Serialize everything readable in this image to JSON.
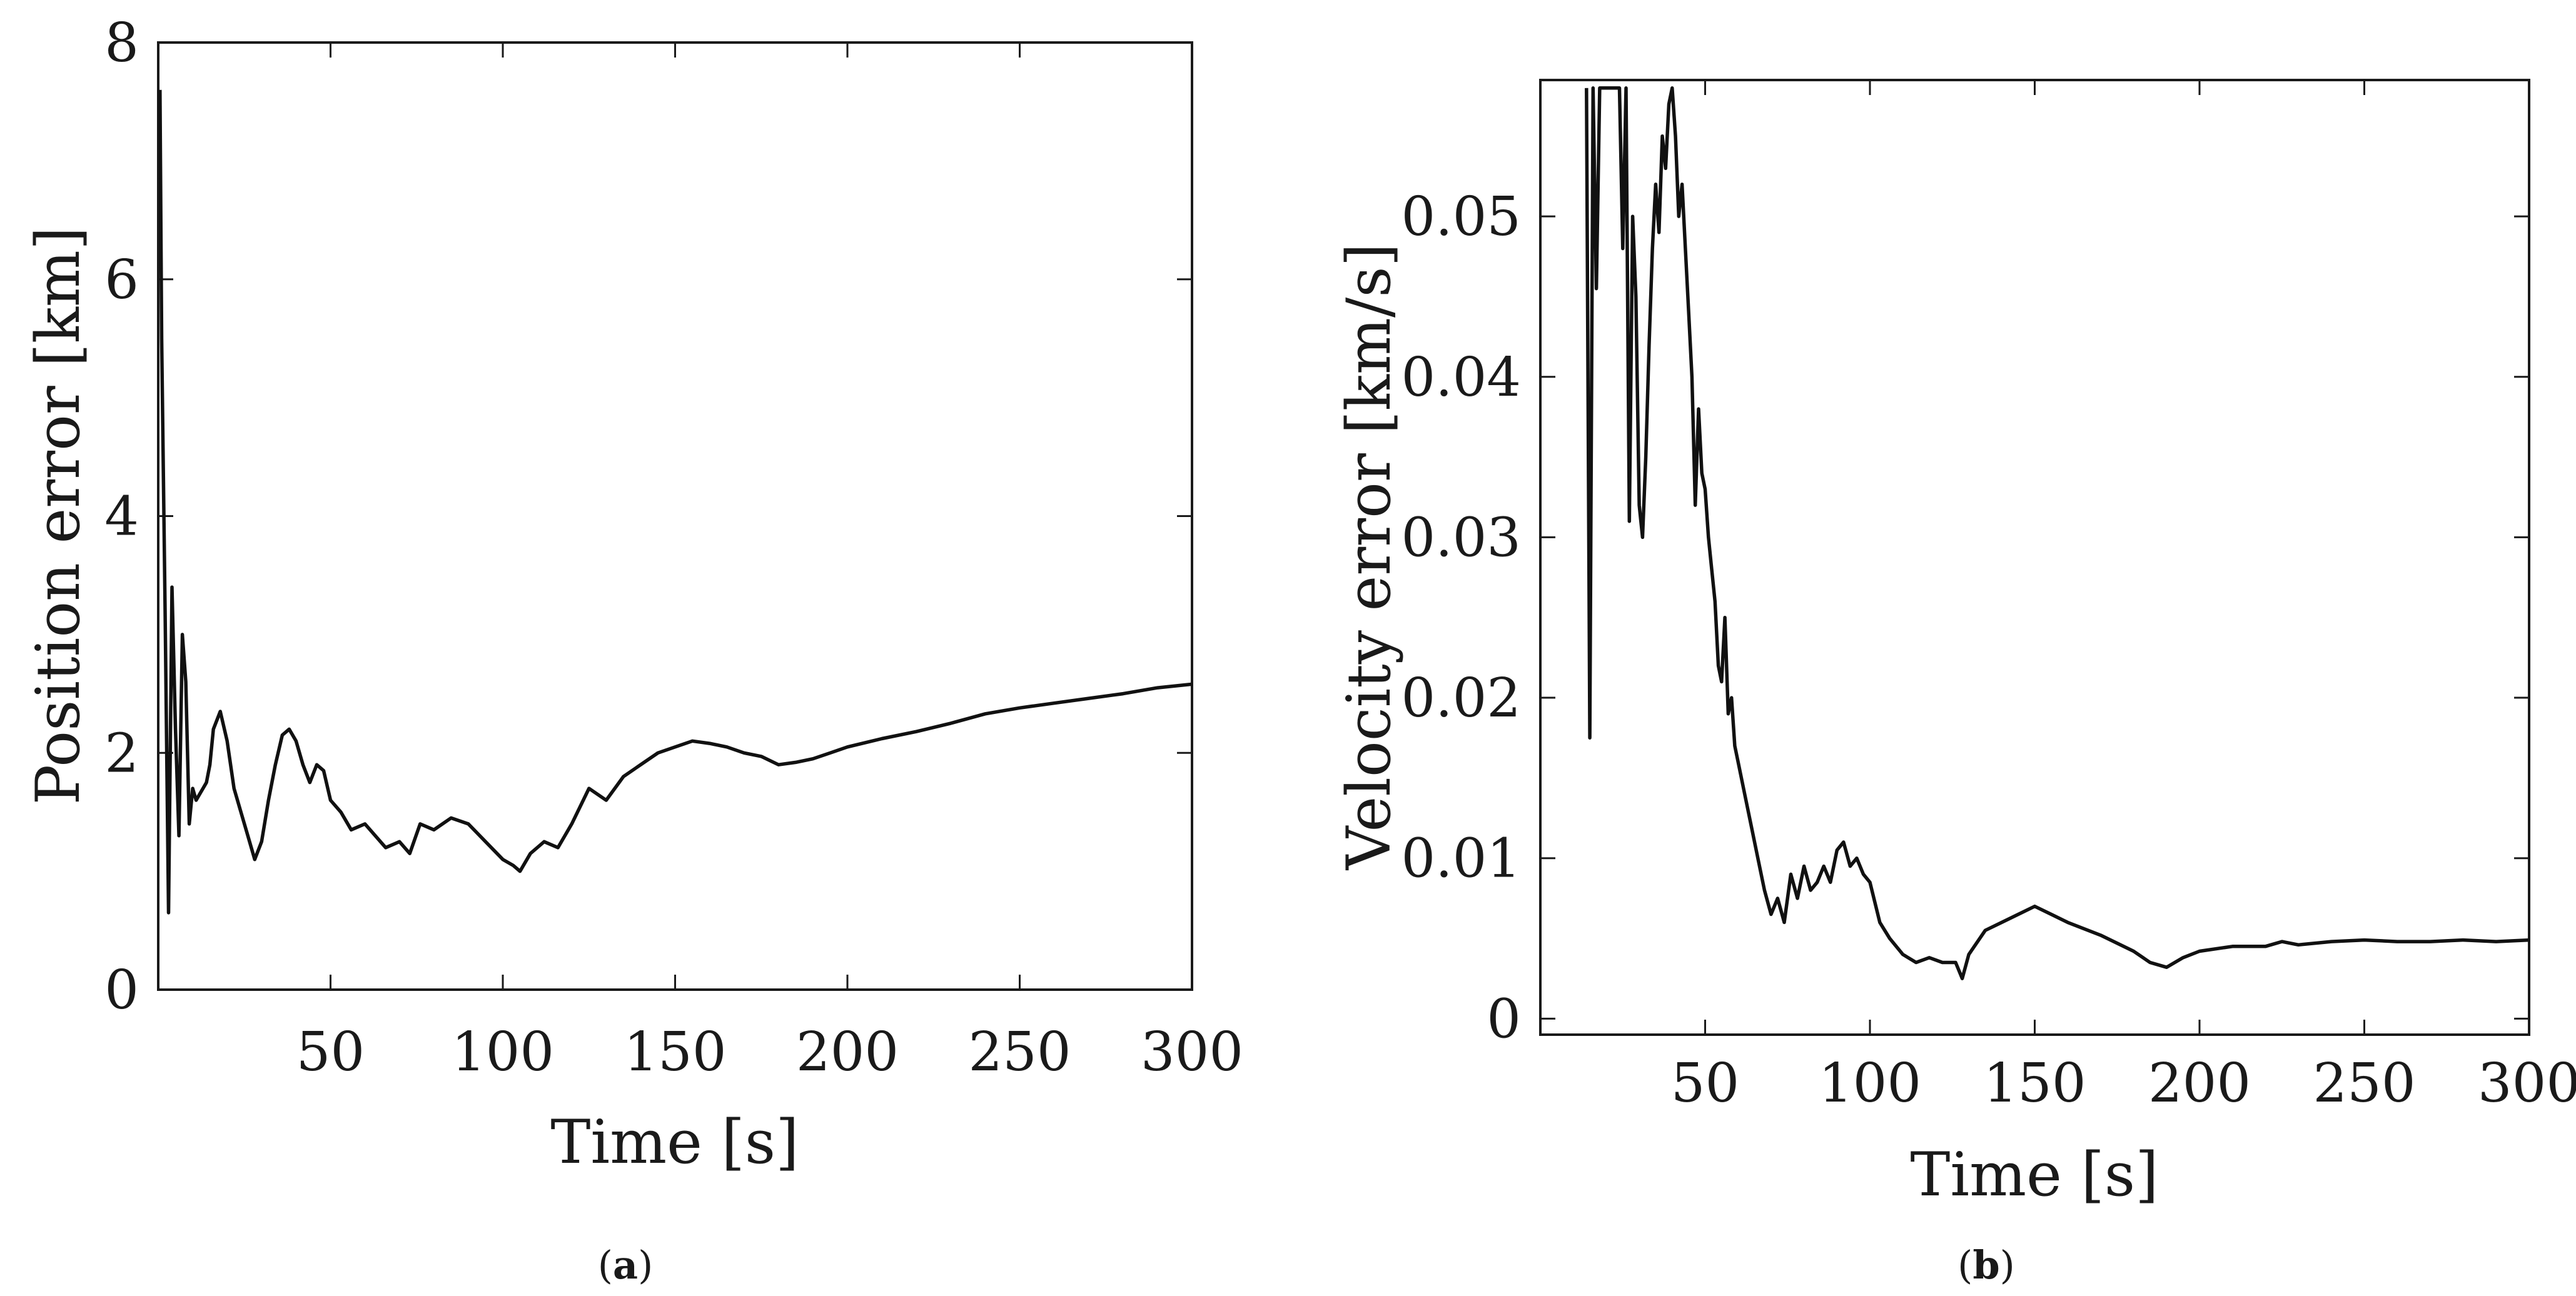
{
  "chart_data": [
    {
      "type": "line",
      "panel": "a",
      "caption": "a",
      "xlabel": "Time [s]",
      "ylabel": "Position error [km]",
      "xlim": [
        0,
        300
      ],
      "ylim": [
        0,
        8
      ],
      "xticks": [
        50,
        100,
        150,
        200,
        250,
        300
      ],
      "yticks": [
        0,
        2,
        4,
        6,
        8
      ],
      "series": [
        {
          "x": [
            0.5,
            1,
            2,
            3,
            4,
            5,
            6,
            7,
            8,
            9,
            10,
            11,
            12,
            13,
            14,
            15,
            16,
            18,
            20,
            22,
            24,
            26,
            28,
            30,
            32,
            34,
            36,
            38,
            40,
            42,
            44,
            46,
            48,
            50,
            53,
            56,
            60,
            63,
            66,
            70,
            73,
            76,
            80,
            85,
            90,
            95,
            100,
            103,
            105,
            108,
            112,
            116,
            120,
            125,
            130,
            135,
            140,
            145,
            150,
            155,
            160,
            165,
            170,
            175,
            180,
            185,
            190,
            195,
            200,
            210,
            220,
            230,
            240,
            250,
            260,
            270,
            280,
            290,
            300
          ],
          "values": [
            7.6,
            5.5,
            3.2,
            0.65,
            3.4,
            2.2,
            1.3,
            3.0,
            2.6,
            1.4,
            1.7,
            1.6,
            1.65,
            1.7,
            1.75,
            1.9,
            2.2,
            2.35,
            2.1,
            1.7,
            1.5,
            1.3,
            1.1,
            1.25,
            1.6,
            1.9,
            2.15,
            2.2,
            2.1,
            1.9,
            1.75,
            1.9,
            1.85,
            1.6,
            1.5,
            1.35,
            1.4,
            1.3,
            1.2,
            1.25,
            1.15,
            1.4,
            1.35,
            1.45,
            1.4,
            1.25,
            1.1,
            1.05,
            1.0,
            1.15,
            1.25,
            1.2,
            1.4,
            1.7,
            1.6,
            1.8,
            1.9,
            2.0,
            2.05,
            2.1,
            2.08,
            2.05,
            2.0,
            1.97,
            1.9,
            1.92,
            1.95,
            2.0,
            2.05,
            2.12,
            2.18,
            2.25,
            2.33,
            2.38,
            2.42,
            2.46,
            2.5,
            2.55,
            2.58
          ]
        }
      ]
    },
    {
      "type": "line",
      "panel": "b",
      "caption": "b",
      "xlabel": "Time [s]",
      "ylabel": "Velocity error [km/s]",
      "xlim": [
        0,
        300
      ],
      "ylim": [
        -0.001,
        0.0585
      ],
      "xticks": [
        50,
        100,
        150,
        200,
        250,
        300
      ],
      "yticks": [
        0,
        0.01,
        0.02,
        0.03,
        0.04,
        0.05
      ],
      "ytick_labels": [
        "0",
        "0.01",
        "0.02",
        "0.03",
        "0.04",
        "0.05"
      ],
      "series": [
        {
          "x": [
            14,
            15,
            16,
            17,
            18,
            20,
            22,
            24,
            25,
            26,
            27,
            28,
            29,
            30,
            31,
            32,
            33,
            34,
            35,
            36,
            37,
            38,
            39,
            40,
            41,
            42,
            43,
            44,
            45,
            46,
            47,
            48,
            49,
            50,
            51,
            52,
            53,
            54,
            55,
            56,
            57,
            58,
            59,
            60,
            62,
            64,
            66,
            68,
            70,
            72,
            74,
            76,
            78,
            80,
            82,
            84,
            86,
            88,
            90,
            92,
            94,
            96,
            98,
            100,
            103,
            106,
            110,
            114,
            118,
            122,
            126,
            128,
            130,
            135,
            140,
            145,
            150,
            155,
            160,
            170,
            180,
            185,
            190,
            195,
            200,
            210,
            220,
            225,
            230,
            240,
            250,
            260,
            270,
            280,
            290,
            300
          ],
          "values": [
            0.058,
            0.0175,
            0.058,
            0.0455,
            0.058,
            0.058,
            0.058,
            0.058,
            0.048,
            0.058,
            0.031,
            0.05,
            0.045,
            0.032,
            0.03,
            0.035,
            0.042,
            0.048,
            0.052,
            0.049,
            0.055,
            0.053,
            0.057,
            0.058,
            0.055,
            0.05,
            0.052,
            0.048,
            0.044,
            0.04,
            0.032,
            0.038,
            0.034,
            0.033,
            0.03,
            0.028,
            0.026,
            0.022,
            0.021,
            0.025,
            0.019,
            0.02,
            0.017,
            0.016,
            0.014,
            0.012,
            0.01,
            0.008,
            0.0065,
            0.0075,
            0.006,
            0.009,
            0.0075,
            0.0095,
            0.008,
            0.0085,
            0.0095,
            0.0085,
            0.0105,
            0.011,
            0.0095,
            0.01,
            0.009,
            0.0085,
            0.006,
            0.005,
            0.004,
            0.0035,
            0.0038,
            0.0035,
            0.0035,
            0.0025,
            0.004,
            0.0055,
            0.006,
            0.0065,
            0.007,
            0.0065,
            0.006,
            0.0052,
            0.0042,
            0.0035,
            0.0032,
            0.0038,
            0.0042,
            0.0045,
            0.0045,
            0.0048,
            0.0046,
            0.0048,
            0.0049,
            0.0048,
            0.0048,
            0.0049,
            0.0048,
            0.0049
          ]
        }
      ]
    }
  ]
}
